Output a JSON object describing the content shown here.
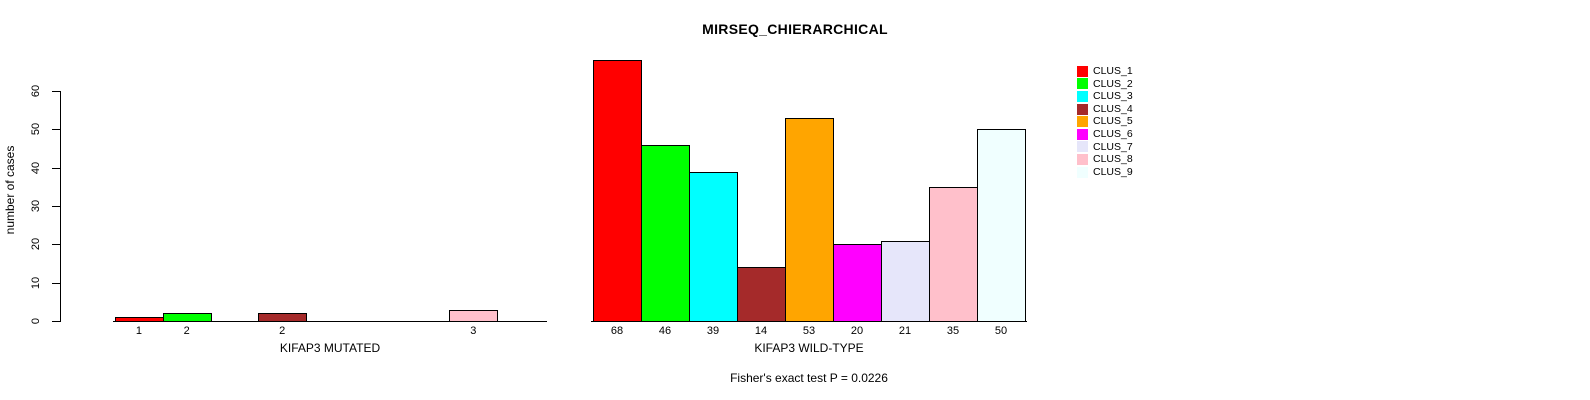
{
  "title": "MIRSEQ_CHIERARCHICAL",
  "caption": "Fisher's exact test P = 0.0226",
  "y_axis": {
    "label": "number of cases",
    "ticks": [
      0,
      10,
      20,
      30,
      40,
      50,
      60
    ],
    "limit": [
      0,
      60
    ]
  },
  "palette": [
    "#FF0000",
    "#00FF00",
    "#00FFFF",
    "#A52A2A",
    "#FFA500",
    "#FF00FF",
    "#E6E6FA",
    "#FFC0CB",
    "#F0FFFF"
  ],
  "legend": {
    "labels": [
      "CLUS_1",
      "CLUS_2",
      "CLUS_3",
      "CLUS_4",
      "CLUS_5",
      "CLUS_6",
      "CLUS_7",
      "CLUS_8",
      "CLUS_9"
    ]
  },
  "chart_data": [
    {
      "type": "bar",
      "panel": "left",
      "xlabel": "KIFAP3 MUTATED",
      "categories": [
        "CLUS_1",
        "CLUS_2",
        "CLUS_3",
        "CLUS_4",
        "CLUS_5",
        "CLUS_6",
        "CLUS_7",
        "CLUS_8",
        "CLUS_9"
      ],
      "values": [
        1,
        2,
        0,
        2,
        0,
        0,
        0,
        3,
        0
      ],
      "bar_labels": [
        "1",
        "2",
        "",
        "2",
        "",
        "",
        "",
        "3",
        ""
      ],
      "ylim": [
        0,
        60
      ],
      "grid": false,
      "legend_position": "right"
    },
    {
      "type": "bar",
      "panel": "right",
      "xlabel": "KIFAP3 WILD-TYPE",
      "categories": [
        "CLUS_1",
        "CLUS_2",
        "CLUS_3",
        "CLUS_4",
        "CLUS_5",
        "CLUS_6",
        "CLUS_7",
        "CLUS_8",
        "CLUS_9"
      ],
      "values": [
        68,
        46,
        39,
        14,
        53,
        20,
        21,
        35,
        50
      ],
      "bar_labels": [
        "68",
        "46",
        "39",
        "14",
        "53",
        "20",
        "21",
        "35",
        "50"
      ],
      "ylim": [
        0,
        60
      ],
      "grid": false,
      "legend_position": "right"
    }
  ]
}
